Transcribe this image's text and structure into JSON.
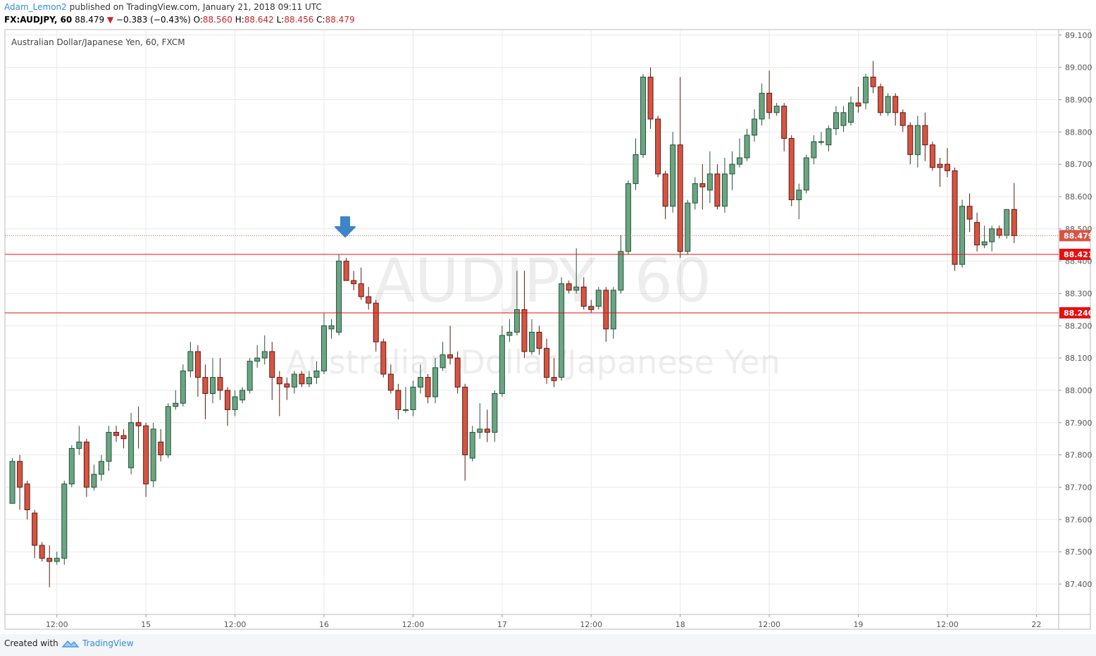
{
  "header": {
    "author": "Adam_Lemon2",
    "published": "published on TradingView.com, January 21, 2018 09:11 UTC",
    "symbol": "FX:AUDJPY, 60",
    "last": "88.479",
    "direction": "▼",
    "change": "−0.383 (−0.43%)",
    "ohlc": [
      {
        "label": "O:",
        "value": "88.560"
      },
      {
        "label": "H:",
        "value": "88.642"
      },
      {
        "label": "L:",
        "value": "88.456"
      },
      {
        "label": "C:",
        "value": "88.479"
      }
    ]
  },
  "footer": {
    "created": "Created with",
    "brand": "TradingView"
  },
  "chart_data": {
    "type": "candlestick",
    "legend": "Australian Dollar/Japanese Yen, 60, FXCM",
    "watermark": "AUDJPY, 60",
    "watermark_sub": "Australian Dollar/Japanese Yen",
    "up_color": "#6ba583",
    "up_border": "#225437",
    "down_color": "#d75442",
    "down_border": "#5b1a13",
    "grid": true,
    "xlim": [
      -1,
      141
    ],
    "xticks": [
      {
        "value": 6,
        "label": "12:00"
      },
      {
        "value": 18,
        "label": "15"
      },
      {
        "value": 30,
        "label": "12:00"
      },
      {
        "value": 42,
        "label": "16"
      },
      {
        "value": 54,
        "label": "12:00"
      },
      {
        "value": 66,
        "label": "17"
      },
      {
        "value": 78,
        "label": "12:00"
      },
      {
        "value": 90,
        "label": "18"
      },
      {
        "value": 102,
        "label": "12:00"
      },
      {
        "value": 114,
        "label": "19"
      },
      {
        "value": 126,
        "label": "12:00"
      },
      {
        "value": 138,
        "label": "22"
      }
    ],
    "ylim": [
      87.306,
      89.117
    ],
    "yticks": [
      {
        "value": 87.4,
        "label": "87.400"
      },
      {
        "value": 87.5,
        "label": "87.500"
      },
      {
        "value": 87.6,
        "label": "87.600"
      },
      {
        "value": 87.7,
        "label": "87.700"
      },
      {
        "value": 87.8,
        "label": "87.800"
      },
      {
        "value": 87.9,
        "label": "87.900"
      },
      {
        "value": 88.0,
        "label": "88.000"
      },
      {
        "value": 88.1,
        "label": "88.100"
      },
      {
        "value": 88.2,
        "label": "88.200"
      },
      {
        "value": 88.3,
        "label": "88.300"
      },
      {
        "value": 88.4,
        "label": "88.400"
      },
      {
        "value": 88.5,
        "label": "88.500"
      },
      {
        "value": 88.6,
        "label": "88.600"
      },
      {
        "value": 88.7,
        "label": "88.700"
      },
      {
        "value": 88.8,
        "label": "88.800"
      },
      {
        "value": 88.9,
        "label": "88.900"
      },
      {
        "value": 89.0,
        "label": "89.000"
      },
      {
        "value": 89.1,
        "label": "89.100"
      }
    ],
    "levels": [
      88.421,
      {
        "value": 88.24,
        "label": "88.240"
      }
    ],
    "level_color": "#e51010",
    "last_price": 88.479,
    "last_color": "#d75442",
    "open": [
      87.65,
      87.78,
      87.71,
      87.62,
      87.52,
      87.48,
      87.47,
      87.48,
      87.71,
      87.82,
      87.84,
      87.7,
      87.74,
      87.78,
      87.87,
      87.86,
      87.76,
      87.9,
      87.89,
      87.72,
      87.84,
      87.8,
      87.95,
      87.96,
      88.06,
      88.12,
      88.04,
      87.99,
      88.04,
      88.0,
      87.94,
      87.97,
      88.0,
      88.09,
      88.1,
      88.12,
      88.04,
      88.02,
      88.01,
      88.05,
      88.02,
      88.04,
      88.06,
      88.19,
      88.18,
      88.4,
      88.34,
      88.33,
      88.29,
      88.27,
      88.15,
      88.05,
      88.0,
      87.94,
      87.94,
      88.01,
      88.04,
      87.98,
      88.07,
      88.11,
      88.1,
      88.01,
      87.79,
      87.87,
      87.88,
      87.87,
      87.99,
      88.17,
      88.18,
      88.25,
      88.12,
      88.18,
      88.13,
      88.04,
      88.04,
      88.33,
      88.31,
      88.32,
      88.26,
      88.26,
      88.31,
      88.19,
      88.31,
      88.43,
      88.64,
      88.73,
      88.97,
      88.84,
      88.67,
      88.57,
      88.76,
      88.43,
      88.58,
      88.64,
      88.62,
      88.67,
      88.57,
      88.67,
      88.7,
      88.72,
      88.79,
      88.84,
      88.92,
      88.86,
      88.88,
      88.78,
      88.59,
      88.62,
      88.72,
      88.77,
      88.76,
      88.81,
      88.82,
      88.83,
      88.89,
      88.89,
      88.97,
      88.94,
      88.86,
      88.91,
      88.86,
      88.82,
      88.73,
      88.82,
      88.76,
      88.7,
      88.7,
      88.68,
      88.39,
      88.57,
      88.52,
      88.45,
      88.46,
      88.5,
      88.48,
      88.56
    ],
    "high": [
      87.79,
      87.8,
      87.72,
      87.63,
      87.53,
      87.52,
      87.5,
      87.72,
      87.83,
      87.89,
      87.85,
      87.77,
      87.8,
      87.89,
      87.89,
      87.88,
      87.93,
      87.95,
      87.9,
      87.9,
      87.88,
      87.96,
      88.0,
      88.08,
      88.15,
      88.14,
      88.08,
      88.1,
      88.1,
      88.01,
      88.0,
      88.01,
      88.1,
      88.14,
      88.17,
      88.15,
      88.06,
      88.04,
      88.06,
      88.06,
      88.06,
      88.09,
      88.24,
      88.22,
      88.42,
      88.41,
      88.37,
      88.38,
      88.32,
      88.28,
      88.16,
      88.08,
      88.02,
      88.01,
      88.03,
      88.08,
      88.05,
      88.1,
      88.15,
      88.2,
      88.12,
      88.02,
      87.89,
      87.96,
      87.94,
      88.0,
      88.2,
      88.22,
      88.37,
      88.37,
      88.22,
      88.2,
      88.16,
      88.1,
      88.35,
      88.34,
      88.44,
      88.35,
      88.28,
      88.32,
      88.32,
      88.32,
      88.48,
      88.65,
      88.78,
      88.98,
      89.0,
      88.85,
      88.68,
      88.8,
      88.97,
      88.59,
      88.66,
      88.7,
      88.74,
      88.7,
      88.72,
      88.74,
      88.78,
      88.81,
      88.87,
      88.95,
      88.99,
      88.89,
      88.89,
      88.79,
      88.64,
      88.73,
      88.79,
      88.8,
      88.82,
      88.88,
      88.88,
      88.91,
      88.94,
      88.98,
      89.02,
      88.95,
      88.92,
      88.92,
      88.87,
      88.83,
      88.85,
      88.86,
      88.77,
      88.72,
      88.75,
      88.69,
      88.59,
      88.61,
      88.55,
      88.51,
      88.51,
      88.51,
      88.56,
      88.642
    ],
    "low": [
      87.65,
      87.63,
      87.6,
      87.48,
      87.47,
      87.39,
      87.46,
      87.46,
      87.7,
      87.8,
      87.67,
      87.69,
      87.72,
      87.75,
      87.84,
      87.82,
      87.74,
      87.82,
      87.67,
      87.7,
      87.78,
      87.79,
      87.94,
      87.95,
      88.04,
      87.98,
      87.91,
      87.96,
      87.97,
      87.89,
      87.92,
      87.96,
      87.99,
      88.07,
      88.08,
      87.97,
      87.92,
      87.97,
      87.99,
      88.01,
      88.01,
      88.02,
      88.05,
      88.16,
      88.17,
      88.34,
      88.31,
      88.28,
      88.25,
      88.12,
      88.04,
      87.99,
      87.91,
      87.93,
      87.92,
      87.99,
      87.96,
      87.96,
      88.06,
      88.08,
      87.99,
      87.72,
      87.78,
      87.85,
      87.84,
      87.84,
      87.98,
      88.15,
      88.17,
      88.1,
      88.11,
      88.11,
      88.02,
      88.01,
      88.03,
      88.3,
      88.3,
      88.25,
      88.24,
      88.25,
      88.15,
      88.16,
      88.3,
      88.42,
      88.62,
      88.72,
      88.81,
      88.66,
      88.53,
      88.55,
      88.41,
      88.42,
      88.56,
      88.56,
      88.58,
      88.56,
      88.55,
      88.62,
      88.69,
      88.71,
      88.77,
      88.82,
      88.84,
      88.85,
      88.74,
      88.57,
      88.53,
      88.61,
      88.7,
      88.76,
      88.74,
      88.79,
      88.8,
      88.82,
      88.86,
      88.87,
      88.92,
      88.85,
      88.85,
      88.82,
      88.8,
      88.7,
      88.69,
      88.71,
      88.68,
      88.63,
      88.66,
      88.37,
      88.38,
      88.49,
      88.43,
      88.44,
      88.43,
      88.47,
      88.47,
      88.456
    ],
    "close": [
      87.78,
      87.7,
      87.63,
      87.52,
      87.48,
      87.47,
      87.48,
      87.71,
      87.82,
      87.84,
      87.7,
      87.74,
      87.78,
      87.87,
      87.86,
      87.85,
      87.9,
      87.89,
      87.71,
      87.88,
      87.8,
      87.95,
      87.96,
      88.06,
      88.12,
      88.04,
      87.99,
      88.04,
      88.0,
      87.94,
      87.98,
      88.0,
      88.09,
      88.1,
      88.12,
      88.04,
      88.02,
      88.01,
      88.05,
      88.02,
      88.04,
      88.06,
      88.2,
      88.2,
      88.4,
      88.34,
      88.33,
      88.29,
      88.27,
      88.15,
      88.05,
      88.0,
      87.94,
      87.94,
      88.01,
      88.04,
      87.98,
      88.07,
      88.11,
      88.1,
      88.01,
      87.8,
      87.87,
      87.88,
      87.87,
      87.99,
      88.17,
      88.18,
      88.25,
      88.12,
      88.18,
      88.13,
      88.04,
      88.03,
      88.33,
      88.31,
      88.32,
      88.26,
      88.25,
      88.31,
      88.19,
      88.31,
      88.43,
      88.64,
      88.73,
      88.97,
      88.84,
      88.67,
      88.57,
      88.76,
      88.43,
      88.58,
      88.64,
      88.63,
      88.67,
      88.57,
      88.67,
      88.7,
      88.72,
      88.79,
      88.84,
      88.92,
      88.86,
      88.88,
      88.78,
      88.59,
      88.62,
      88.72,
      88.77,
      88.77,
      88.81,
      88.86,
      88.86,
      88.89,
      88.88,
      88.97,
      88.94,
      88.86,
      88.91,
      88.86,
      88.82,
      88.73,
      88.82,
      88.76,
      88.69,
      88.69,
      88.68,
      88.39,
      88.57,
      88.53,
      88.45,
      88.46,
      88.5,
      88.48,
      88.56,
      88.479
    ]
  }
}
